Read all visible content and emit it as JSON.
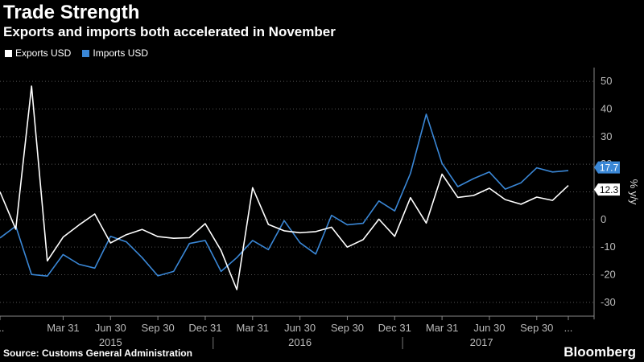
{
  "header": {
    "title": "Trade Strength",
    "subtitle": "Exports and imports both accelerated in November"
  },
  "legend": [
    {
      "label": "Exports USD",
      "color": "#ffffff"
    },
    {
      "label": "Imports USD",
      "color": "#3a87d6"
    }
  ],
  "footer": {
    "source": "Source: Customs General Administration",
    "brand": "Bloomberg"
  },
  "chart_data": {
    "type": "line",
    "title": "Trade Strength",
    "subtitle": "Exports and imports both accelerated in November",
    "xlabel": "",
    "ylabel": "% y/y",
    "ylim": [
      -35,
      55
    ],
    "yticks": [
      -30,
      -20,
      -10,
      0,
      10,
      20,
      30,
      40,
      50
    ],
    "grid": true,
    "legend_position": "top-left",
    "x": [
      "2014-11",
      "2014-12",
      "2015-01",
      "2015-02",
      "2015-03",
      "2015-04",
      "2015-05",
      "2015-06",
      "2015-07",
      "2015-08",
      "2015-09",
      "2015-10",
      "2015-11",
      "2015-12",
      "2016-01",
      "2016-02",
      "2016-03",
      "2016-04",
      "2016-05",
      "2016-06",
      "2016-07",
      "2016-08",
      "2016-09",
      "2016-10",
      "2016-11",
      "2016-12",
      "2017-01",
      "2017-02",
      "2017-03",
      "2017-04",
      "2017-05",
      "2017-06",
      "2017-07",
      "2017-08",
      "2017-09",
      "2017-10",
      "2017-11"
    ],
    "xticks": [
      {
        "label": "...",
        "x": "2014-11"
      },
      {
        "label": "Mar 31",
        "x": "2015-03"
      },
      {
        "label": "Jun 30",
        "x": "2015-06"
      },
      {
        "label": "Sep 30",
        "x": "2015-09"
      },
      {
        "label": "Dec 31",
        "x": "2015-12"
      },
      {
        "label": "Mar 31",
        "x": "2016-03"
      },
      {
        "label": "Jun 30",
        "x": "2016-06"
      },
      {
        "label": "Sep 30",
        "x": "2016-09"
      },
      {
        "label": "Dec 31",
        "x": "2016-12"
      },
      {
        "label": "Mar 31",
        "x": "2017-03"
      },
      {
        "label": "Jun 30",
        "x": "2017-06"
      },
      {
        "label": "Sep 30",
        "x": "2017-09"
      },
      {
        "label": "...",
        "x": "2017-11"
      }
    ],
    "years": [
      {
        "label": "2015",
        "from": "2014-12",
        "to": "2015-12"
      },
      {
        "label": "2016",
        "from": "2015-12",
        "to": "2016-12"
      },
      {
        "label": "2017",
        "from": "2016-12",
        "to": "2017-11"
      }
    ],
    "series": [
      {
        "name": "Exports USD",
        "color": "#ffffff",
        "last_label": "12.3",
        "values": [
          10.0,
          -3.5,
          48.3,
          -15.0,
          -6.4,
          -2.0,
          2.0,
          -8.5,
          -5.5,
          -3.6,
          -6.2,
          -6.8,
          -6.6,
          -1.5,
          -11.2,
          -25.4,
          11.5,
          -1.8,
          -4.1,
          -4.8,
          -4.4,
          -2.8,
          -10.0,
          -7.3,
          0.1,
          -6.1,
          7.9,
          -1.3,
          16.4,
          8.0,
          8.7,
          11.3,
          7.2,
          5.5,
          8.1,
          6.9,
          12.3
        ]
      },
      {
        "name": "Imports USD",
        "color": "#3a87d6",
        "last_label": "17.7",
        "values": [
          -6.7,
          -2.4,
          -19.9,
          -20.5,
          -12.7,
          -16.2,
          -17.6,
          -6.1,
          -8.1,
          -13.8,
          -20.4,
          -18.8,
          -8.7,
          -7.6,
          -18.8,
          -13.8,
          -7.6,
          -10.9,
          -0.4,
          -8.4,
          -12.5,
          1.5,
          -1.9,
          -1.4,
          6.7,
          3.1,
          16.7,
          38.1,
          20.3,
          11.9,
          14.8,
          17.2,
          11.0,
          13.3,
          18.7,
          17.2,
          17.7
        ]
      }
    ]
  }
}
